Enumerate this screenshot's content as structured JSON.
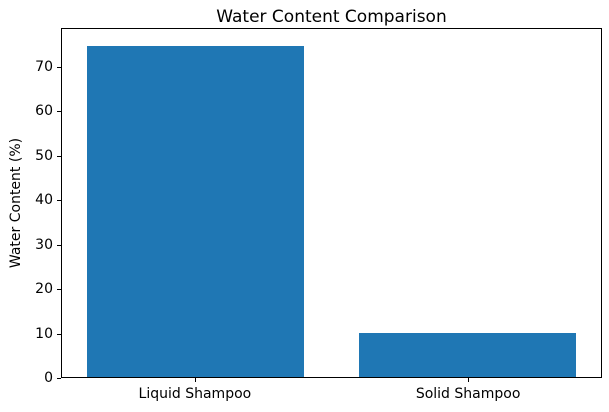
{
  "chart_data": {
    "type": "bar",
    "title": "Water Content Comparison",
    "categories": [
      "Liquid Shampoo",
      "Solid Shampoo"
    ],
    "values": [
      75,
      10
    ],
    "xlabel": "",
    "ylabel": "Water Content (%)",
    "ylim": [
      0,
      78.75
    ],
    "yticks": [
      0,
      10,
      20,
      30,
      40,
      50,
      60,
      70
    ],
    "bar_color": "#1f77b4",
    "bar_width_fraction": 0.8,
    "grid": false,
    "legend_position": "none",
    "background_color": "#ffffff",
    "spine_color": "#000000",
    "text_color": "#000000"
  }
}
